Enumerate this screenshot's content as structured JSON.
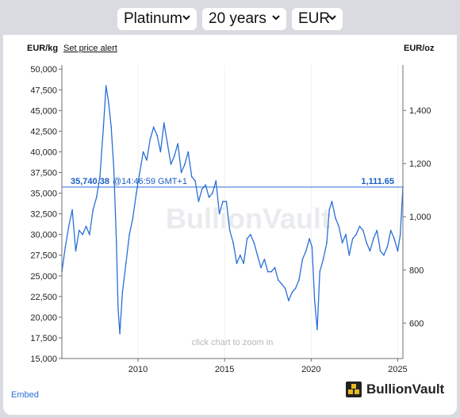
{
  "controls": {
    "metal": "Platinum",
    "period": "20 years",
    "currency": "EUR"
  },
  "header": {
    "left_unit": "EUR/kg",
    "set_alert": "Set price alert",
    "right_unit": "EUR/oz"
  },
  "footer": {
    "embed": "Embed",
    "brand": "BullionVault"
  },
  "colors": {
    "line": "#2a6fd6",
    "price_text": "#1a5ec2",
    "watermark": "#e6e8eb",
    "background": "#d9dbe0"
  },
  "chart_data": {
    "type": "line",
    "title": "",
    "xlabel": "",
    "ylabel_left": "EUR/kg",
    "ylabel_right": "EUR/oz",
    "xlim": [
      2005.6,
      2025.3
    ],
    "ylim_left": [
      15000,
      50500
    ],
    "ylim_right": [
      466.6,
      1570.7
    ],
    "x_ticks": [
      "2010",
      "2015",
      "2020",
      "2025"
    ],
    "x_tick_values": [
      2010,
      2015,
      2020,
      2025
    ],
    "y_left_ticks": [
      "15,000",
      "17,500",
      "20,000",
      "22,500",
      "25,000",
      "27,500",
      "30,000",
      "32,500",
      "35,000",
      "37,500",
      "40,000",
      "42,500",
      "45,000",
      "47,500",
      "50,000"
    ],
    "y_left_tick_values": [
      15000,
      17500,
      20000,
      22500,
      25000,
      27500,
      30000,
      32500,
      35000,
      37500,
      40000,
      42500,
      45000,
      47500,
      50000
    ],
    "y_right_ticks": [
      "600",
      "800",
      "1,000",
      "1,200",
      "1,400"
    ],
    "y_right_tick_values": [
      600,
      800,
      1000,
      1200,
      1400
    ],
    "current_price_kg": 35740.38,
    "current_price_kg_label": "35,740.38",
    "current_price_time": "@14:46:59 GMT+1",
    "current_price_oz_label": "1,111.65",
    "watermark": "BullionVault",
    "hint": "click chart to zoom in",
    "series": [
      {
        "x": [
          2005.6,
          2005.8,
          2006.0,
          2006.2,
          2006.4,
          2006.6,
          2006.8,
          2007.0,
          2007.2,
          2007.4,
          2007.6,
          2007.8,
          2008.0,
          2008.15,
          2008.3,
          2008.45,
          2008.6,
          2008.75,
          2008.85,
          2008.95,
          2009.1,
          2009.3,
          2009.5,
          2009.7,
          2009.9,
          2010.1,
          2010.3,
          2010.5,
          2010.7,
          2010.9,
          2011.1,
          2011.3,
          2011.5,
          2011.7,
          2011.9,
          2012.1,
          2012.3,
          2012.5,
          2012.7,
          2012.9,
          2013.1,
          2013.3,
          2013.5,
          2013.7,
          2013.9,
          2014.1,
          2014.3,
          2014.5,
          2014.7,
          2014.9,
          2015.1,
          2015.3,
          2015.5,
          2015.7,
          2015.9,
          2016.1,
          2016.3,
          2016.5,
          2016.7,
          2016.9,
          2017.1,
          2017.3,
          2017.5,
          2017.7,
          2017.9,
          2018.1,
          2018.3,
          2018.5,
          2018.7,
          2018.9,
          2019.1,
          2019.3,
          2019.5,
          2019.7,
          2019.9,
          2020.05,
          2020.2,
          2020.35,
          2020.5,
          2020.7,
          2020.9,
          2021.05,
          2021.2,
          2021.4,
          2021.6,
          2021.8,
          2022.0,
          2022.2,
          2022.4,
          2022.6,
          2022.8,
          2023.0,
          2023.2,
          2023.4,
          2023.6,
          2023.8,
          2024.0,
          2024.2,
          2024.4,
          2024.6,
          2024.8,
          2025.0,
          2025.15,
          2025.3
        ],
        "y": [
          25500,
          28500,
          31000,
          33000,
          28000,
          30500,
          30000,
          31000,
          30000,
          33000,
          34500,
          37000,
          43000,
          48000,
          46000,
          43000,
          38000,
          29000,
          21000,
          18000,
          23000,
          26500,
          30000,
          32000,
          35000,
          37500,
          40000,
          39000,
          41500,
          43000,
          42000,
          40000,
          43500,
          41000,
          38500,
          39500,
          41000,
          37500,
          38500,
          40000,
          37000,
          36500,
          34000,
          35500,
          36000,
          34500,
          35000,
          36500,
          32500,
          34000,
          34000,
          30500,
          29000,
          26500,
          27500,
          26500,
          29500,
          30000,
          29000,
          27500,
          26000,
          27000,
          25500,
          25500,
          26000,
          24500,
          24000,
          23500,
          22000,
          23000,
          23500,
          24500,
          27000,
          28000,
          29500,
          28500,
          22000,
          18500,
          25500,
          27000,
          29000,
          33000,
          34000,
          32000,
          31000,
          29000,
          30000,
          27500,
          29500,
          30000,
          31000,
          30500,
          29000,
          28000,
          29500,
          30500,
          28000,
          27500,
          28500,
          30500,
          29500,
          28000,
          30000,
          35740
        ]
      }
    ]
  }
}
